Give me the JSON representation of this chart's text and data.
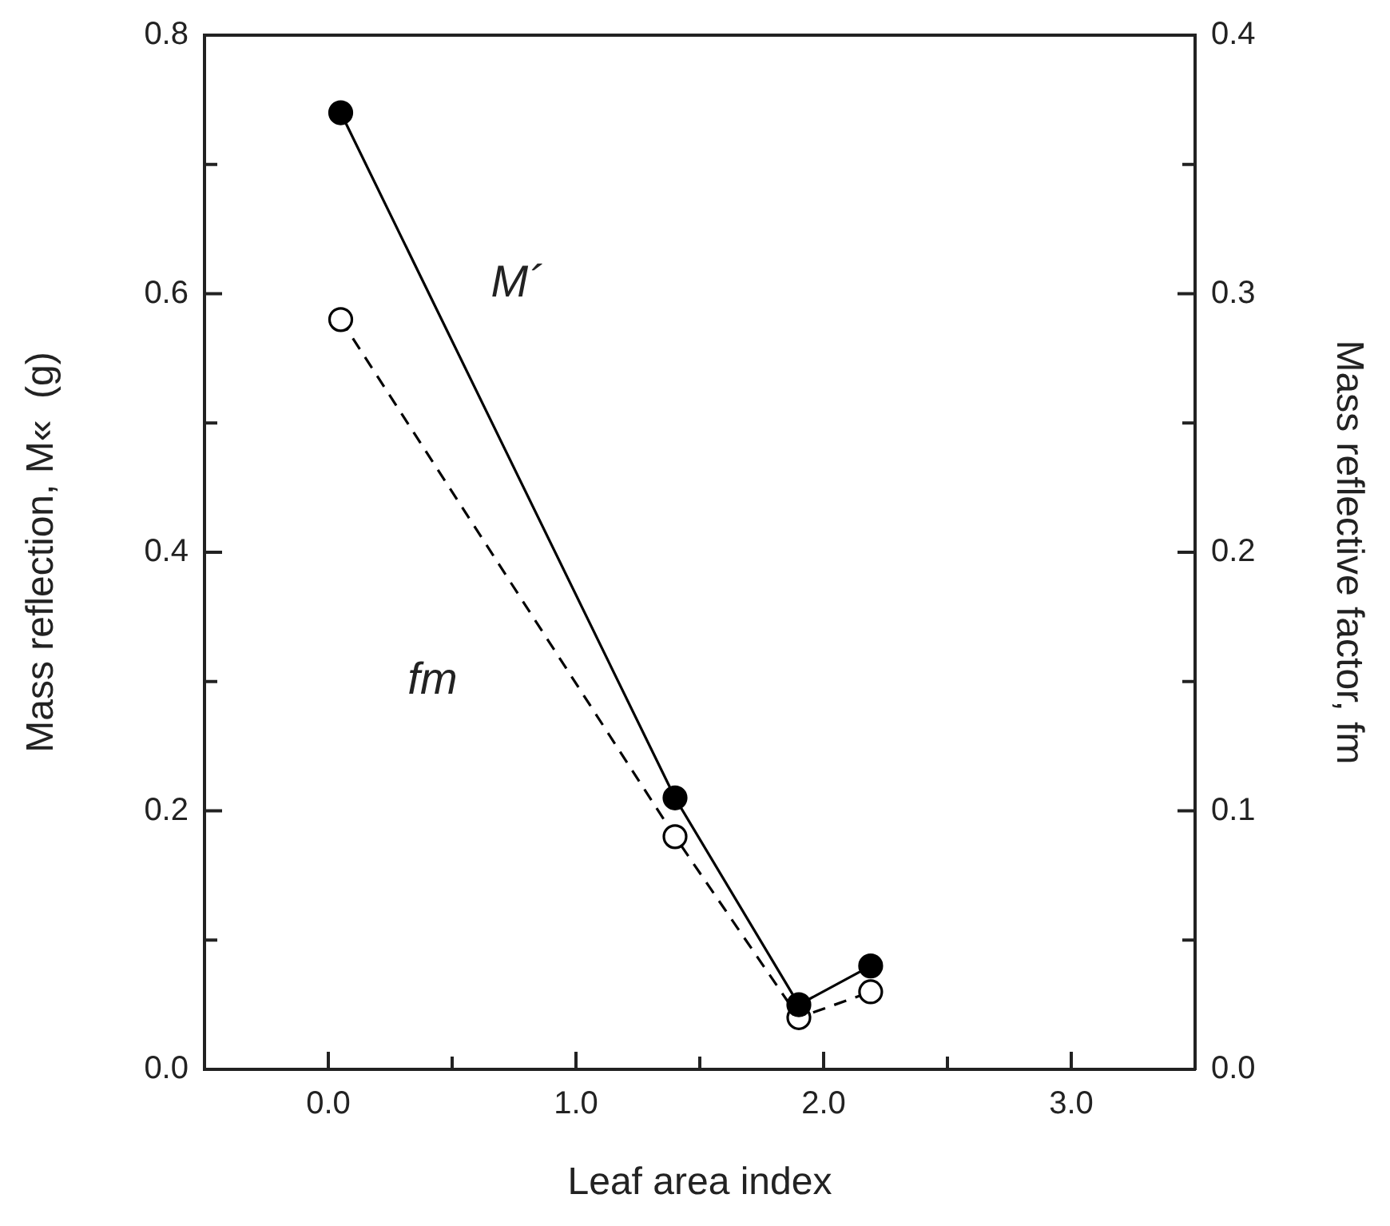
{
  "chart_data": {
    "type": "line",
    "xlabel": "Leaf area index",
    "ylabel": "Mass reflection, M«  (g)",
    "y2label": "Mass reflective factor, fm",
    "xlim": [
      -0.5,
      3.5
    ],
    "xticks": [
      {
        "value": 0,
        "label": "0.0"
      },
      {
        "value": 0.5,
        "label": null
      },
      {
        "value": 1,
        "label": "1.0"
      },
      {
        "value": 1.5,
        "label": null
      },
      {
        "value": 2,
        "label": "2.0"
      },
      {
        "value": 2.5,
        "label": null
      },
      {
        "value": 3,
        "label": "3.0"
      }
    ],
    "ylim": [
      0,
      0.8
    ],
    "yticks": [
      {
        "value": 0,
        "label": "0.0"
      },
      {
        "value": 0.1,
        "label": null
      },
      {
        "value": 0.2,
        "label": "0.2"
      },
      {
        "value": 0.3,
        "label": null
      },
      {
        "value": 0.4,
        "label": "0.4"
      },
      {
        "value": 0.5,
        "label": null
      },
      {
        "value": 0.6,
        "label": "0.6"
      },
      {
        "value": 0.7,
        "label": null
      },
      {
        "value": 0.8,
        "label": "0.8"
      }
    ],
    "y2lim": [
      0,
      0.4
    ],
    "y2ticks": [
      {
        "value": 0,
        "label": "0.0"
      },
      {
        "value": 0.05,
        "label": null
      },
      {
        "value": 0.1,
        "label": "0.1"
      },
      {
        "value": 0.15,
        "label": null
      },
      {
        "value": 0.2,
        "label": "0.2"
      },
      {
        "value": 0.25,
        "label": null
      },
      {
        "value": 0.3,
        "label": "0.3"
      },
      {
        "value": 0.35,
        "label": null
      },
      {
        "value": 0.4,
        "label": "0.4"
      }
    ],
    "grid": false,
    "legend": false,
    "marker": "circle",
    "series": [
      {
        "color": "#000000",
        "line_style": "solid",
        "x": [
          0.05,
          1.4,
          1.9,
          2.19
        ],
        "values": [
          0.74,
          0.21,
          0.05,
          0.08
        ]
      },
      {
        "color": "#000000",
        "line_style": "dashed",
        "axis": "y2",
        "x": [
          0.05,
          1.4,
          1.9,
          2.19
        ],
        "values": [
          0.29,
          0.09,
          0.02,
          0.03
        ]
      }
    ],
    "annotations": [
      "M´",
      "fm"
    ]
  }
}
